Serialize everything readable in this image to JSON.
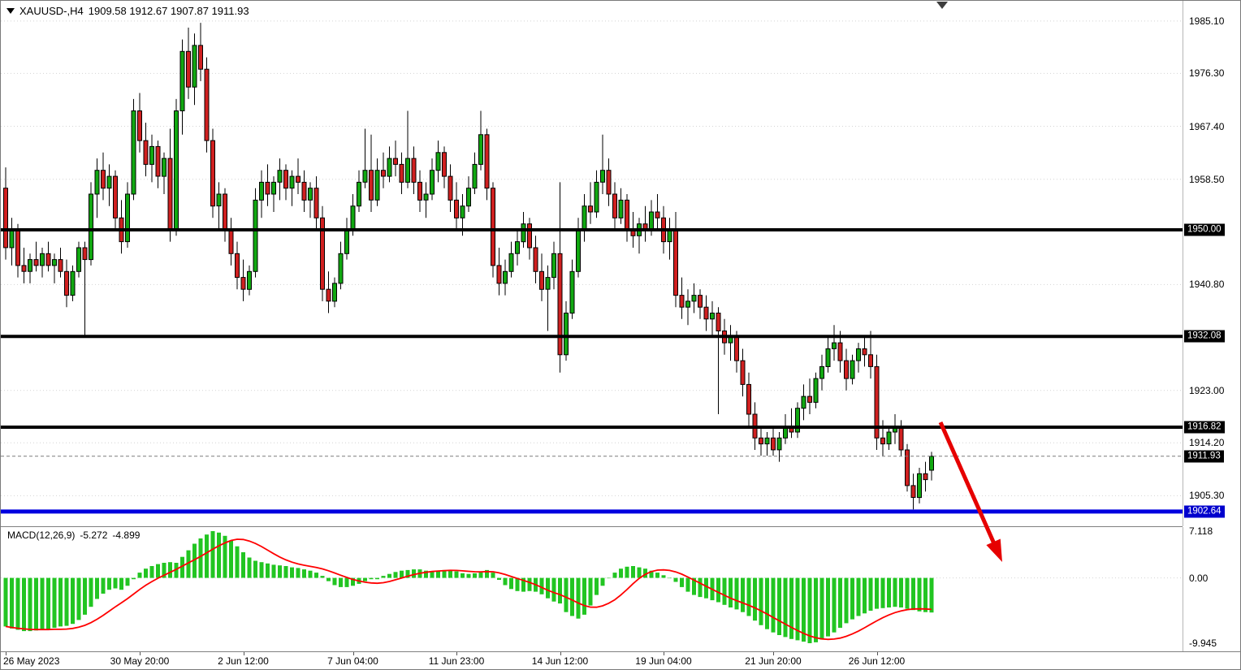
{
  "header": {
    "symbol": "XAUUSD-,H4",
    "ohlc": "1909.58 1912.67 1907.87 1911.93"
  },
  "colors": {
    "bull": "#11a811",
    "bear": "#d02020",
    "wick": "#000000",
    "grid": "#d4d4d4",
    "level_black": "#000000",
    "level_blue": "#0000e0",
    "bid_line": "#7c7c7c",
    "macd_hist": "#22c522",
    "signal": "#ff0000",
    "arrow": "#e60000",
    "badge_bg": "#000000",
    "badge_blue_bg": "#0000cd"
  },
  "chart_data": {
    "type": "candlestick",
    "title": "XAUUSD-,H4 1909.58 1912.67 1907.87 1911.93",
    "symbol": "XAUUSD-",
    "timeframe": "H4",
    "last_ohlc": {
      "open": 1909.58,
      "high": 1912.67,
      "low": 1907.87,
      "close": 1911.93
    },
    "price_range": {
      "top": 1988.5,
      "bottom": 1900.3
    },
    "price_axis": {
      "ticks": [
        "1985.10",
        "1976.30",
        "1967.40",
        "1958.50",
        "1940.80",
        "1923.00",
        "1914.20",
        "1905.30"
      ]
    },
    "levels": [
      {
        "price": 1950.0,
        "label": "1950.00",
        "style": "black"
      },
      {
        "price": 1932.08,
        "label": "1932.08",
        "style": "black"
      },
      {
        "price": 1916.82,
        "label": "1916.82",
        "style": "black"
      },
      {
        "price": 1902.64,
        "label": "1902.64",
        "style": "blue"
      },
      {
        "price": 1911.93,
        "label": "1911.93",
        "style": "bid"
      }
    ],
    "time_ticks": [
      {
        "index": 0,
        "label": "26 May 2023"
      },
      {
        "index": 22,
        "label": "30 May 20:00"
      },
      {
        "index": 39,
        "label": "2 Jun 12:00"
      },
      {
        "index": 57,
        "label": "7 Jun 04:00"
      },
      {
        "index": 74,
        "label": "11 Jun 23:00"
      },
      {
        "index": 91,
        "label": "14 Jun 12:00"
      },
      {
        "index": 108,
        "label": "19 Jun 04:00"
      },
      {
        "index": 126,
        "label": "21 Jun 20:00"
      },
      {
        "index": 143,
        "label": "26 Jun 12:00"
      }
    ],
    "candles": [
      [
        1957,
        1960.5,
        1945,
        1947
      ],
      [
        1947,
        1952,
        1944,
        1950
      ],
      [
        1950,
        1951,
        1942,
        1944
      ],
      [
        1944,
        1947,
        1941,
        1943
      ],
      [
        1943,
        1946,
        1941,
        1945
      ],
      [
        1945,
        1948,
        1943,
        1944
      ],
      [
        1944,
        1947,
        1942,
        1946
      ],
      [
        1946,
        1948,
        1943,
        1944
      ],
      [
        1944,
        1946,
        1941,
        1945
      ],
      [
        1945,
        1947,
        1942,
        1943
      ],
      [
        1943,
        1945,
        1937,
        1939
      ],
      [
        1939,
        1944,
        1938,
        1943
      ],
      [
        1943,
        1948,
        1942,
        1947
      ],
      [
        1947,
        1948,
        1932,
        1945
      ],
      [
        1945,
        1958,
        1944,
        1956
      ],
      [
        1956,
        1962,
        1952,
        1960
      ],
      [
        1960,
        1963,
        1955,
        1957
      ],
      [
        1957,
        1961,
        1954,
        1959
      ],
      [
        1959,
        1960,
        1950,
        1952
      ],
      [
        1952,
        1955,
        1946,
        1948
      ],
      [
        1948,
        1958,
        1947,
        1956
      ],
      [
        1956,
        1972,
        1955,
        1970
      ],
      [
        1970,
        1973,
        1963,
        1965
      ],
      [
        1965,
        1968,
        1959,
        1961
      ],
      [
        1961,
        1966,
        1958,
        1964
      ],
      [
        1964,
        1965,
        1957,
        1959
      ],
      [
        1959,
        1963,
        1956,
        1962
      ],
      [
        1962,
        1967,
        1948,
        1950
      ],
      [
        1950,
        1972,
        1949,
        1970
      ],
      [
        1970,
        1982,
        1966,
        1980
      ],
      [
        1980,
        1984,
        1972,
        1974
      ],
      [
        1974,
        1983,
        1971,
        1981
      ],
      [
        1981,
        1984.8,
        1975,
        1977
      ],
      [
        1977,
        1979,
        1963,
        1965
      ],
      [
        1965,
        1967,
        1952,
        1954
      ],
      [
        1954,
        1958,
        1950,
        1956
      ],
      [
        1956,
        1957,
        1948,
        1950
      ],
      [
        1950,
        1952,
        1944,
        1946
      ],
      [
        1946,
        1948,
        1940,
        1942
      ],
      [
        1942,
        1945,
        1938,
        1940
      ],
      [
        1940,
        1944,
        1939,
        1943
      ],
      [
        1943,
        1957,
        1942,
        1955
      ],
      [
        1955,
        1960,
        1952,
        1958
      ],
      [
        1958,
        1961,
        1954,
        1956
      ],
      [
        1956,
        1959,
        1953,
        1958
      ],
      [
        1958,
        1962,
        1955,
        1960
      ],
      [
        1960,
        1961,
        1955,
        1957
      ],
      [
        1957,
        1960,
        1954,
        1959
      ],
      [
        1959,
        1962,
        1956,
        1958
      ],
      [
        1958,
        1960,
        1953,
        1955
      ],
      [
        1955,
        1958,
        1952,
        1957
      ],
      [
        1957,
        1959,
        1950,
        1952
      ],
      [
        1952,
        1954,
        1938,
        1940
      ],
      [
        1940,
        1943,
        1936,
        1938
      ],
      [
        1938,
        1942,
        1937,
        1941
      ],
      [
        1941,
        1948,
        1940,
        1946
      ],
      [
        1946,
        1952,
        1945,
        1950
      ],
      [
        1950,
        1956,
        1949,
        1954
      ],
      [
        1954,
        1960,
        1953,
        1958
      ],
      [
        1958,
        1967,
        1957,
        1960
      ],
      [
        1960,
        1966,
        1953,
        1955
      ],
      [
        1955,
        1962,
        1954,
        1960
      ],
      [
        1960,
        1963,
        1957,
        1959
      ],
      [
        1959,
        1964,
        1958,
        1962
      ],
      [
        1962,
        1965,
        1959,
        1961
      ],
      [
        1961,
        1963,
        1956,
        1958
      ],
      [
        1958,
        1970,
        1957,
        1962
      ],
      [
        1962,
        1964,
        1956,
        1958
      ],
      [
        1958,
        1960,
        1953,
        1955
      ],
      [
        1955,
        1958,
        1952,
        1956
      ],
      [
        1956,
        1962,
        1955,
        1960
      ],
      [
        1960,
        1965,
        1958,
        1963
      ],
      [
        1963,
        1964,
        1957,
        1959
      ],
      [
        1959,
        1961,
        1953,
        1955
      ],
      [
        1955,
        1958,
        1950,
        1952
      ],
      [
        1952,
        1956,
        1949,
        1954
      ],
      [
        1954,
        1959,
        1953,
        1957
      ],
      [
        1957,
        1963,
        1956,
        1961
      ],
      [
        1961,
        1970,
        1960,
        1966
      ],
      [
        1966,
        1967,
        1955,
        1957
      ],
      [
        1957,
        1958,
        1942,
        1944
      ],
      [
        1944,
        1947,
        1939,
        1941
      ],
      [
        1941,
        1945,
        1939,
        1943
      ],
      [
        1943,
        1948,
        1942,
        1946
      ],
      [
        1946,
        1950,
        1944,
        1948
      ],
      [
        1948,
        1953,
        1947,
        1951
      ],
      [
        1951,
        1952,
        1945,
        1947
      ],
      [
        1947,
        1949,
        1941,
        1943
      ],
      [
        1943,
        1946,
        1938,
        1940
      ],
      [
        1940,
        1944,
        1933,
        1942
      ],
      [
        1942,
        1948,
        1940,
        1946
      ],
      [
        1946,
        1958,
        1926,
        1929
      ],
      [
        1929,
        1938,
        1928,
        1936
      ],
      [
        1936,
        1945,
        1935,
        1943
      ],
      [
        1943,
        1952,
        1942,
        1950
      ],
      [
        1950,
        1956,
        1948,
        1954
      ],
      [
        1954,
        1958,
        1951,
        1953
      ],
      [
        1953,
        1960,
        1952,
        1958
      ],
      [
        1958,
        1966,
        1956,
        1960
      ],
      [
        1960,
        1962,
        1954,
        1956
      ],
      [
        1956,
        1958,
        1950,
        1952
      ],
      [
        1952,
        1957,
        1951,
        1955
      ],
      [
        1955,
        1956,
        1948,
        1950
      ],
      [
        1950,
        1953,
        1947,
        1949
      ],
      [
        1949,
        1952,
        1946,
        1951
      ],
      [
        1951,
        1954,
        1948,
        1950
      ],
      [
        1950,
        1955,
        1949,
        1953
      ],
      [
        1953,
        1956,
        1950,
        1952
      ],
      [
        1952,
        1954,
        1946,
        1948
      ],
      [
        1948,
        1952,
        1945,
        1950
      ],
      [
        1950,
        1953,
        1937,
        1939
      ],
      [
        1939,
        1942,
        1935,
        1937
      ],
      [
        1937,
        1940,
        1934,
        1938
      ],
      [
        1938,
        1941,
        1936,
        1939
      ],
      [
        1939,
        1940,
        1935,
        1937
      ],
      [
        1937,
        1939,
        1933,
        1935
      ],
      [
        1935,
        1938,
        1932,
        1936
      ],
      [
        1936,
        1937,
        1919,
        1933
      ],
      [
        1933,
        1935,
        1929,
        1931
      ],
      [
        1931,
        1934,
        1928,
        1932
      ],
      [
        1932,
        1933,
        1926,
        1928
      ],
      [
        1928,
        1930,
        1922,
        1924
      ],
      [
        1924,
        1926,
        1917,
        1919
      ],
      [
        1919,
        1921,
        1913,
        1915
      ],
      [
        1915,
        1917,
        1912,
        1914
      ],
      [
        1914,
        1916,
        1912,
        1915
      ],
      [
        1915,
        1917,
        1912,
        1913
      ],
      [
        1913,
        1916,
        1911,
        1915
      ],
      [
        1915,
        1919,
        1914,
        1917
      ],
      [
        1917,
        1920,
        1915,
        1916
      ],
      [
        1916,
        1921,
        1915,
        1920
      ],
      [
        1920,
        1924,
        1918,
        1922
      ],
      [
        1922,
        1925,
        1919,
        1921
      ],
      [
        1921,
        1926,
        1920,
        1925
      ],
      [
        1925,
        1929,
        1923,
        1927
      ],
      [
        1927,
        1932,
        1926,
        1930
      ],
      [
        1930,
        1934,
        1928,
        1931
      ],
      [
        1931,
        1933,
        1926,
        1928
      ],
      [
        1928,
        1930,
        1923,
        1925
      ],
      [
        1925,
        1929,
        1924,
        1928
      ],
      [
        1928,
        1931,
        1926,
        1930
      ],
      [
        1930,
        1932,
        1927,
        1929
      ],
      [
        1929,
        1933,
        1925,
        1927
      ],
      [
        1927,
        1929,
        1913,
        1915
      ],
      [
        1915,
        1918,
        1912,
        1914
      ],
      [
        1914,
        1917,
        1913,
        1916
      ],
      [
        1916,
        1919,
        1914,
        1917
      ],
      [
        1917,
        1918,
        1912,
        1913
      ],
      [
        1913,
        1914,
        1906,
        1907
      ],
      [
        1907,
        1909,
        1903,
        1905
      ],
      [
        1905,
        1910,
        1904,
        1909
      ],
      [
        1909,
        1911,
        1906,
        1908
      ],
      [
        1909.58,
        1912.67,
        1907.87,
        1911.93
      ]
    ],
    "macd": {
      "label_name": "MACD(12,26,9)",
      "label_value_macd": "-5.272",
      "label_value_signal": "-4.899",
      "signal_period": 9,
      "axis_max": 7.118,
      "axis_min": -9.945,
      "axis_labels": [
        "7.118",
        "0.00",
        "-9.945"
      ],
      "values": [
        -7.4,
        -7.7,
        -7.9,
        -8.1,
        -8.1,
        -8.0,
        -7.9,
        -7.8,
        -7.6,
        -7.4,
        -7.3,
        -7.0,
        -6.4,
        -5.6,
        -4.4,
        -3.2,
        -2.4,
        -1.8,
        -1.6,
        -1.8,
        -1.2,
        -0.2,
        0.8,
        1.4,
        1.8,
        2.1,
        2.3,
        2.4,
        2.3,
        3.2,
        4.2,
        5.2,
        6.0,
        6.6,
        7.118,
        6.9,
        6.4,
        5.7,
        4.8,
        3.9,
        3.1,
        2.6,
        2.4,
        2.2,
        2.0,
        1.9,
        1.8,
        1.6,
        1.5,
        1.3,
        1.1,
        0.8,
        0.3,
        -0.5,
        -1.1,
        -1.4,
        -1.4,
        -1.2,
        -0.9,
        -0.5,
        -0.2,
        -0.2,
        0.3,
        0.6,
        0.9,
        1.1,
        1.2,
        1.3,
        1.3,
        1.1,
        0.9,
        1.0,
        1.2,
        1.2,
        1.0,
        0.7,
        0.6,
        0.7,
        1.0,
        1.2,
        0.8,
        -0.3,
        -1.1,
        -1.7,
        -2.0,
        -2.1,
        -2.0,
        -2.1,
        -2.5,
        -3.1,
        -3.6,
        -3.9,
        -5.2,
        -5.8,
        -6.2,
        -5.6,
        -4.2,
        -2.6,
        -1.2,
        0.0,
        0.8,
        1.4,
        1.7,
        1.8,
        1.6,
        1.4,
        1.1,
        0.8,
        0.4,
        0.0,
        -0.6,
        -1.4,
        -2.1,
        -2.6,
        -2.9,
        -3.1,
        -3.4,
        -3.7,
        -4.1,
        -4.5,
        -4.8,
        -5.2,
        -5.8,
        -6.5,
        -7.2,
        -7.8,
        -8.3,
        -8.7,
        -9.0,
        -9.3,
        -9.5,
        -9.7,
        -9.945,
        -9.8,
        -9.4,
        -8.9,
        -8.3,
        -7.6,
        -6.9,
        -6.3,
        -5.8,
        -5.4,
        -5.0,
        -4.7,
        -4.6,
        -4.5,
        -4.4,
        -4.5,
        -4.7,
        -4.9,
        -5.1,
        -5.2,
        -5.272
      ]
    },
    "arrow": {
      "from": [
        1157,
        519
      ],
      "to": [
        1233,
        691
      ]
    }
  }
}
